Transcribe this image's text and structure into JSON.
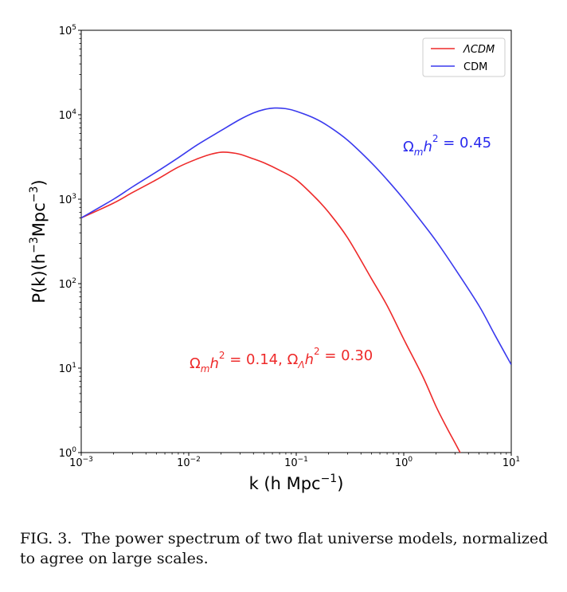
{
  "chart_data": {
    "type": "line",
    "xscale": "log",
    "yscale": "log",
    "xlim": [
      0.001,
      10
    ],
    "ylim": [
      1,
      100000
    ],
    "xlabel": {
      "base": "k (h Mpc",
      "sup": "−1",
      "tail": ")"
    },
    "ylabel": {
      "base": "P(k)(h",
      "sup": "−3",
      "mid": "Mpc",
      "sup2": "−3",
      "tail": ")"
    },
    "xticks": [
      {
        "value": 0.001,
        "base": "10",
        "exp": "−3"
      },
      {
        "value": 0.01,
        "base": "10",
        "exp": "−2"
      },
      {
        "value": 0.1,
        "base": "10",
        "exp": "−1"
      },
      {
        "value": 1,
        "base": "10",
        "exp": "0"
      },
      {
        "value": 10,
        "base": "10",
        "exp": "1"
      }
    ],
    "yticks": [
      {
        "value": 1,
        "base": "10",
        "exp": "0"
      },
      {
        "value": 10,
        "base": "10",
        "exp": "1"
      },
      {
        "value": 100,
        "base": "10",
        "exp": "2"
      },
      {
        "value": 1000,
        "base": "10",
        "exp": "3"
      },
      {
        "value": 10000,
        "base": "10",
        "exp": "4"
      },
      {
        "value": 100000,
        "base": "10",
        "exp": "5"
      }
    ],
    "legend": {
      "placement": "top-right"
    },
    "series": [
      {
        "name": "ΛCDM",
        "color": "#ee2a2a",
        "x": [
          0.001,
          0.002,
          0.003,
          0.005,
          0.008,
          0.012,
          0.016,
          0.02,
          0.025,
          0.03,
          0.04,
          0.05,
          0.07,
          0.1,
          0.15,
          0.2,
          0.3,
          0.5,
          0.7,
          1.0,
          1.5,
          2.0,
          2.5,
          3.0,
          3.5
        ],
        "y": [
          600,
          900,
          1200,
          1700,
          2400,
          3000,
          3400,
          3600,
          3550,
          3400,
          3000,
          2700,
          2200,
          1700,
          1050,
          700,
          350,
          115,
          55,
          22,
          8,
          3.5,
          2.0,
          1.3,
          0.9
        ]
      },
      {
        "name": "CDM",
        "color": "#3a3aee",
        "x": [
          0.001,
          0.002,
          0.003,
          0.005,
          0.008,
          0.012,
          0.02,
          0.03,
          0.04,
          0.05,
          0.063,
          0.08,
          0.1,
          0.15,
          0.2,
          0.3,
          0.5,
          0.7,
          1.0,
          1.5,
          2.0,
          3.0,
          5.0,
          7.0,
          10.0
        ],
        "y": [
          600,
          1000,
          1400,
          2100,
          3100,
          4400,
          6500,
          8800,
          10500,
          11500,
          12000,
          11800,
          11000,
          9000,
          7300,
          5000,
          2700,
          1700,
          1000,
          520,
          320,
          150,
          55,
          25,
          11
        ]
      }
    ],
    "annotations": [
      {
        "series": "CDM",
        "text_parts": [
          "Ω",
          "m",
          "h",
          "2",
          " = 0.45"
        ],
        "color": "#2a2aee"
      },
      {
        "series": "ΛCDM",
        "text_parts": [
          "Ω",
          "m",
          "h",
          "2",
          " = 0.14, Ω",
          "Λ",
          "h",
          "2",
          " = 0.30"
        ],
        "color": "#ee2a2a"
      }
    ]
  },
  "caption": {
    "label": "FIG. 3.",
    "text": "The power spectrum of two flat universe models, normalized to agree on large scales."
  }
}
